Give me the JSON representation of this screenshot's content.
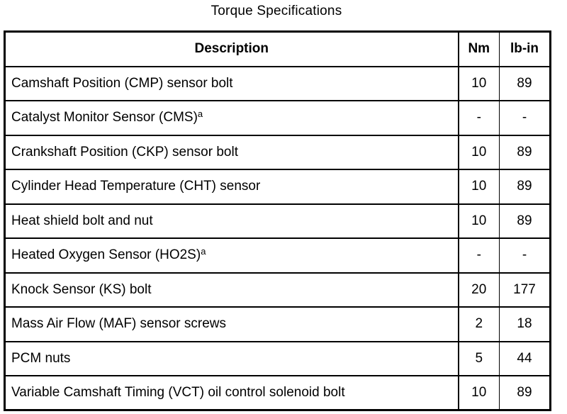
{
  "title": "Torque Specifications",
  "table": {
    "headers": {
      "description": "Description",
      "nm": "Nm",
      "lbin": "lb-in"
    },
    "rows": [
      {
        "description": "Camshaft Position (CMP) sensor bolt",
        "sup": "",
        "nm": "10",
        "lbin": "89"
      },
      {
        "description": "Catalyst Monitor Sensor (CMS)",
        "sup": "a",
        "nm": "-",
        "lbin": "-"
      },
      {
        "description": "Crankshaft Position (CKP) sensor bolt",
        "sup": "",
        "nm": "10",
        "lbin": "89"
      },
      {
        "description": "Cylinder Head Temperature (CHT) sensor",
        "sup": "",
        "nm": "10",
        "lbin": "89"
      },
      {
        "description": "Heat shield bolt and nut",
        "sup": "",
        "nm": "10",
        "lbin": "89"
      },
      {
        "description": "Heated Oxygen Sensor (HO2S)",
        "sup": "a",
        "nm": "-",
        "lbin": "-"
      },
      {
        "description": "Knock Sensor (KS) bolt",
        "sup": "",
        "nm": "20",
        "lbin": "177"
      },
      {
        "description": "Mass Air Flow (MAF) sensor screws",
        "sup": "",
        "nm": "2",
        "lbin": "18"
      },
      {
        "description": "PCM nuts",
        "sup": "",
        "nm": "5",
        "lbin": "44"
      },
      {
        "description": "Variable Camshaft Timing (VCT) oil control solenoid bolt",
        "sup": "",
        "nm": "10",
        "lbin": "89"
      }
    ]
  },
  "colors": {
    "ink": "#000000",
    "paper": "#ffffff"
  }
}
